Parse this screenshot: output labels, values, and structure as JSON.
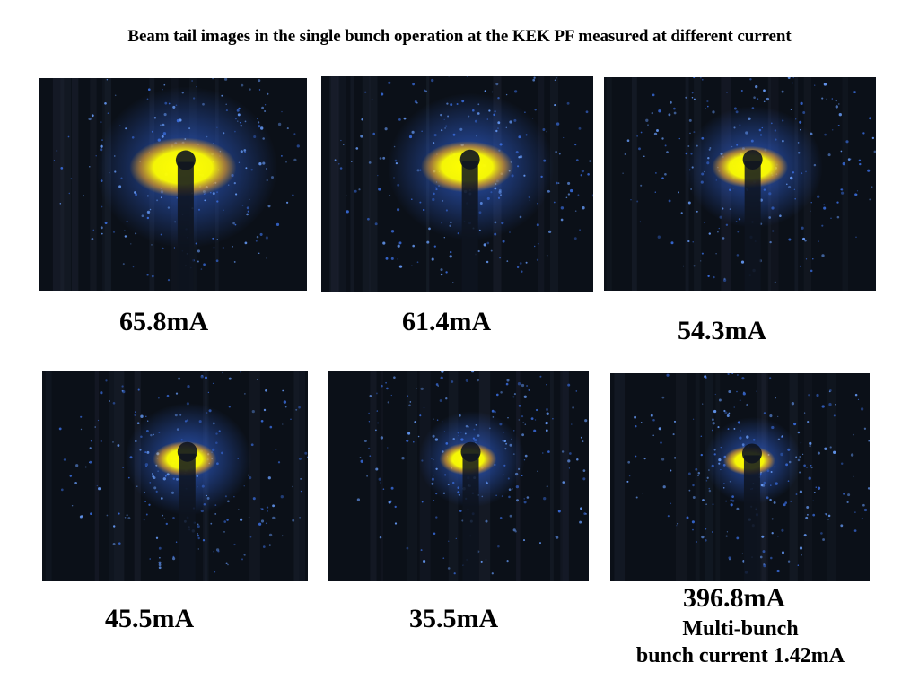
{
  "title": "Beam tail images in the single bunch operation at the KEK PF measured at different current",
  "panels": [
    {
      "current": "65.8mA",
      "glow": 1.0,
      "core": 1.0
    },
    {
      "current": "61.4mA",
      "glow": 0.9,
      "core": 0.85
    },
    {
      "current": "54.3mA",
      "glow": 0.75,
      "core": 0.7
    },
    {
      "current": "45.5mA",
      "glow": 0.7,
      "core": 0.6
    },
    {
      "current": "35.5mA",
      "glow": 0.6,
      "core": 0.55
    },
    {
      "current": "396.8mA",
      "glow": 0.55,
      "core": 0.5
    }
  ],
  "multibunch": {
    "line1": "Multi-bunch",
    "line2": "bunch current 1.42mA"
  },
  "colors": {
    "background": "#0b1018",
    "halo": "#2f5fd0",
    "core": "#ffff00",
    "mid": "#f2a21a"
  }
}
